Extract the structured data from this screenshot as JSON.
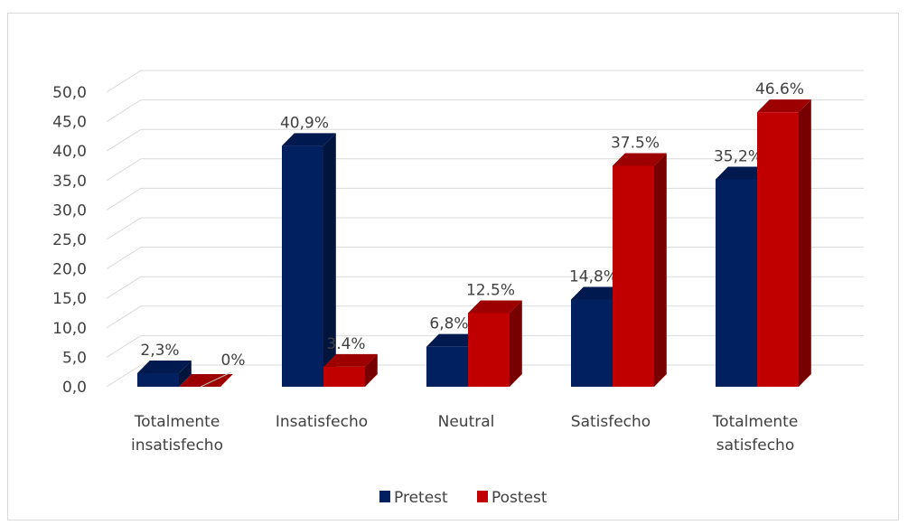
{
  "chart_data": {
    "type": "bar",
    "categories": [
      "Totalmente insatisfecho",
      "Insatisfecho",
      "Neutral",
      "Satisfecho",
      "Totalmente satisfecho"
    ],
    "series": [
      {
        "name": "Pretest",
        "values": [
          2.3,
          40.9,
          6.8,
          14.8,
          35.2
        ],
        "labels": [
          "2,3%",
          "40,9%",
          "6,8%",
          "14,8%",
          "35,2%"
        ],
        "color": "#002060"
      },
      {
        "name": "Postest",
        "values": [
          0,
          3.4,
          12.5,
          37.5,
          46.6
        ],
        "labels": [
          "0%",
          "3.4%",
          "12.5%",
          "37.5%",
          "46.6%"
        ],
        "color": "#C00000"
      }
    ],
    "yticks": [
      "0,0",
      "5,0",
      "10,0",
      "15,0",
      "20,0",
      "25,0",
      "30,0",
      "35,0",
      "40,0",
      "45,0",
      "50,0"
    ],
    "ylim": [
      0,
      50
    ],
    "grid": true,
    "legend_position": "bottom",
    "three_d": true
  }
}
